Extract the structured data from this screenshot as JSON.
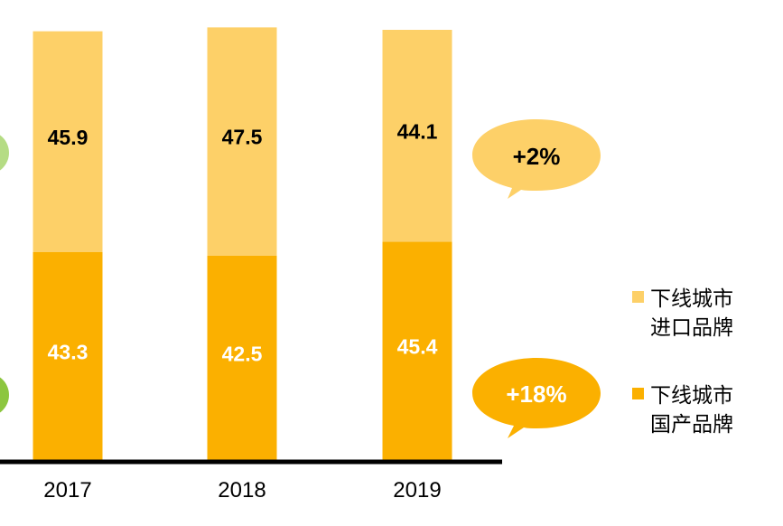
{
  "chart_data": {
    "type": "bar",
    "stacked": true,
    "categories": [
      "2017",
      "2018",
      "2019"
    ],
    "series": [
      {
        "name": "下线城市国产品牌",
        "name_line1": "下线城市",
        "name_line2": "国产品牌",
        "values": [
          43.3,
          42.5,
          45.4
        ],
        "color": "#fbb000",
        "label_color": "#ffffff"
      },
      {
        "name": "下线城市进口品牌",
        "name_line1": "下线城市",
        "name_line2": "进口品牌",
        "values": [
          45.9,
          47.5,
          44.1
        ],
        "color": "#fdd068",
        "label_color": "#000000"
      }
    ],
    "ylim": [
      0,
      89.5
    ],
    "title": "",
    "xlabel": "",
    "ylabel": "",
    "legend_position": "right",
    "annotations": [
      {
        "text": "+2%",
        "series": "下线城市进口品牌",
        "text_color": "#000000",
        "fill": "#fdd068"
      },
      {
        "text": "+18%",
        "series": "下线城市国产品牌",
        "text_color": "#ffffff",
        "fill": "#fbb000"
      }
    ],
    "axis_color": "#000000"
  },
  "decor": {
    "green_light": "#b5dc84",
    "green_dark": "#8cc63f"
  }
}
